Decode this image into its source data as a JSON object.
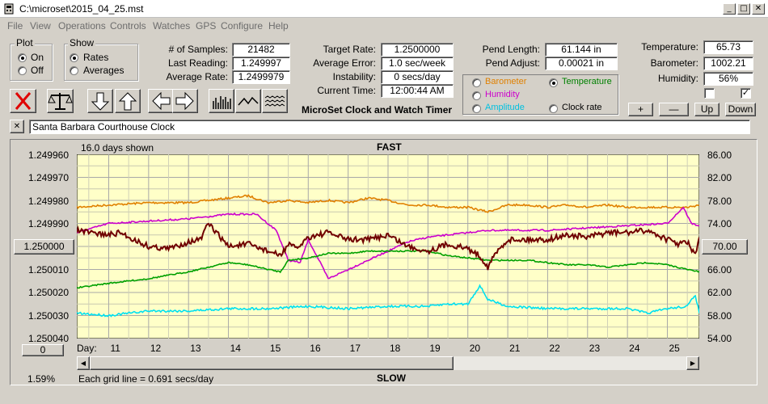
{
  "window": {
    "title": "C:\\microset\\2015_04_25.mst"
  },
  "menu": [
    "File",
    "View",
    "Operations",
    "Controls",
    "Watches",
    "GPS",
    "Configure",
    "Help"
  ],
  "plot": {
    "title": "Plot",
    "on": "On",
    "off": "Off"
  },
  "show": {
    "title": "Show",
    "rates": "Rates",
    "averages": "Averages"
  },
  "stats": {
    "samples_label": "# of Samples:",
    "samples": "21482",
    "last_label": "Last Reading:",
    "last": "1.249997",
    "avg_label": "Average Rate:",
    "avg": "1.2499979",
    "target_label": "Target Rate:",
    "target": "1.2500000",
    "avgerr_label": "Average Error:",
    "avgerr": "1.0 sec/week",
    "instab_label": "Instability:",
    "instab": "0 secs/day",
    "time_label": "Current Time:",
    "time": "12:00:44 AM",
    "pendlen_label": "Pend Length:",
    "pendlen": "61.144 in",
    "pendadj_label": "Pend Adjust:",
    "pendadj": "0.00021 in",
    "temp_label": "Temperature:",
    "temp": "65.73",
    "baro_label": "Barometer:",
    "baro": "1002.21",
    "hum_label": "Humidity:",
    "hum": "56%"
  },
  "app_title": "MicroSet Clock and Watch Timer",
  "sensors": {
    "barometer": "Barometer",
    "humidity": "Humidity",
    "amplitude": "Amplitude",
    "temperature": "Temperature",
    "clockrate": "Clock rate",
    "colors": {
      "barometer": "#e08000",
      "humidity": "#cc00cc",
      "amplitude": "#00c0e0",
      "temperature": "#008000"
    }
  },
  "scale_buttons": {
    "plus": "+",
    "minus": "—",
    "up": "Up",
    "down": "Down"
  },
  "checkbox_right": "✓",
  "comment": "Santa Barbara Courthouse Clock",
  "graph": {
    "days_shown": "16.0 days shown",
    "fast": "FAST",
    "slow": "SLOW",
    "grid_note": "Each grid line = 0.691 secs/day",
    "percent": "1.59%",
    "left_button": "1.250000",
    "right_button": "70.00",
    "zero_button": "0",
    "day_label": "Day:"
  },
  "chart_data": {
    "type": "line",
    "title": "",
    "xlabel": "Day:",
    "x_ticks": [
      "11",
      "12",
      "13",
      "14",
      "15",
      "16",
      "17",
      "18",
      "19",
      "20",
      "21",
      "22",
      "23",
      "24",
      "25"
    ],
    "left_axis": {
      "ticks": [
        "1.249960",
        "1.249970",
        "1.249980",
        "1.249990",
        "1.250000",
        "1.250010",
        "1.250020",
        "1.250030",
        "1.250040"
      ],
      "ylim": [
        1.25004,
        1.24996
      ]
    },
    "right_axis": {
      "ticks": [
        "86.00",
        "82.00",
        "78.00",
        "74.00",
        "70.00",
        "66.00",
        "62.00",
        "58.00",
        "54.00"
      ],
      "ylim": [
        54,
        86
      ]
    },
    "xlim": [
      10.2,
      25.8
    ],
    "series": [
      {
        "color": "#e08000",
        "axis": "left",
        "x": [
          10.2,
          11,
          12,
          13,
          13.5,
          14,
          14.5,
          15,
          15.5,
          16,
          16.5,
          17,
          17.5,
          18,
          18.5,
          19,
          19.5,
          20,
          20.5,
          21,
          21.5,
          22,
          22.5,
          23,
          23.5,
          24,
          24.5,
          25,
          25.5,
          25.8
        ],
        "y": [
          1.249983,
          1.249982,
          1.249981,
          1.249981,
          1.24998,
          1.249979,
          1.249978,
          1.249981,
          1.24998,
          1.249981,
          1.24998,
          1.249981,
          1.249979,
          1.24998,
          1.249982,
          1.249982,
          1.249983,
          1.249983,
          1.249985,
          1.249982,
          1.249982,
          1.249983,
          1.249982,
          1.249983,
          1.249982,
          1.249983,
          1.249983,
          1.249983,
          1.249983,
          1.249982
        ]
      },
      {
        "color": "#cc00cc",
        "axis": "left",
        "x": [
          10.2,
          11,
          12,
          13,
          14,
          14.7,
          15.2,
          15.5,
          15.8,
          16,
          16.3,
          16.5,
          17,
          17.5,
          18,
          18.5,
          19,
          19.5,
          20,
          20.5,
          21,
          22,
          23,
          24,
          25,
          25.4,
          25.6,
          25.8
        ],
        "y": [
          1.249994,
          1.24999,
          1.249989,
          1.249988,
          1.249986,
          1.249986,
          1.249993,
          1.250006,
          1.250007,
          1.249997,
          1.250007,
          1.250014,
          1.25001,
          1.250006,
          1.250002,
          1.249998,
          1.249996,
          1.249995,
          1.249994,
          1.249993,
          1.249993,
          1.249993,
          1.249992,
          1.249991,
          1.24999,
          1.249983,
          1.24999,
          1.249991
        ]
      },
      {
        "color": "#00a000",
        "axis": "left",
        "x": [
          10.2,
          11,
          12,
          13,
          13.5,
          14,
          14.5,
          15,
          15.3,
          15.5,
          16,
          16.5,
          17,
          17.5,
          18,
          18.5,
          19,
          19.5,
          20,
          20.5,
          21,
          21.5,
          22,
          22.5,
          23,
          23.5,
          24,
          24.5,
          25,
          25.5,
          25.8
        ],
        "y": [
          1.250018,
          1.250016,
          1.250014,
          1.250011,
          1.250009,
          1.250007,
          1.250008,
          1.25001,
          1.250011,
          1.250006,
          1.250005,
          1.250003,
          1.250003,
          1.250002,
          1.250002,
          1.250002,
          1.250002,
          1.250004,
          1.250005,
          1.250006,
          1.250006,
          1.250006,
          1.250007,
          1.250008,
          1.250008,
          1.250009,
          1.250008,
          1.250007,
          1.250008,
          1.25001,
          1.250011
        ]
      },
      {
        "color": "#00e0f0",
        "axis": "left",
        "x": [
          10.2,
          11,
          12,
          13,
          14,
          15,
          16,
          17,
          18,
          19,
          19.5,
          20,
          20.3,
          20.5,
          21,
          22,
          23,
          24,
          24.5,
          25,
          25.5,
          25.7,
          25.8
        ],
        "y": [
          1.250029,
          1.25003,
          1.250028,
          1.250028,
          1.250027,
          1.250027,
          1.250026,
          1.250027,
          1.250026,
          1.250026,
          1.250025,
          1.250025,
          1.250017,
          1.250023,
          1.250026,
          1.250027,
          1.250027,
          1.250027,
          1.250029,
          1.250027,
          1.250026,
          1.250021,
          1.250029
        ]
      },
      {
        "color": "#700000",
        "axis": "left",
        "x": [
          10.2,
          10.5,
          11,
          11.3,
          11.5,
          12,
          12.5,
          13,
          13.3,
          13.5,
          14,
          14.5,
          15,
          15.3,
          15.5,
          15.7,
          16,
          16.5,
          17,
          17.5,
          18,
          18.5,
          19,
          19.5,
          20,
          20.3,
          20.5,
          20.7,
          21,
          21.5,
          22,
          22.5,
          23,
          23.5,
          24,
          24.5,
          25,
          25.3,
          25.5,
          25.7,
          25.8
        ],
        "y": [
          1.249993,
          1.249994,
          1.249995,
          1.249994,
          1.249996,
          1.25,
          1.250001,
          1.249998,
          1.249997,
          1.24999,
          1.25,
          1.249999,
          1.250002,
          1.250004,
          1.249999,
          1.250001,
          1.249996,
          1.249994,
          1.249997,
          1.249997,
          1.249995,
          1.25,
          1.250002,
          1.249999,
          1.250001,
          1.250004,
          1.250009,
          1.250003,
          1.249997,
          1.249997,
          1.249997,
          1.249995,
          1.249996,
          1.249994,
          1.249994,
          1.249993,
          1.249997,
          1.249999,
          1.249998,
          1.250004,
          1.249996
        ]
      }
    ]
  }
}
